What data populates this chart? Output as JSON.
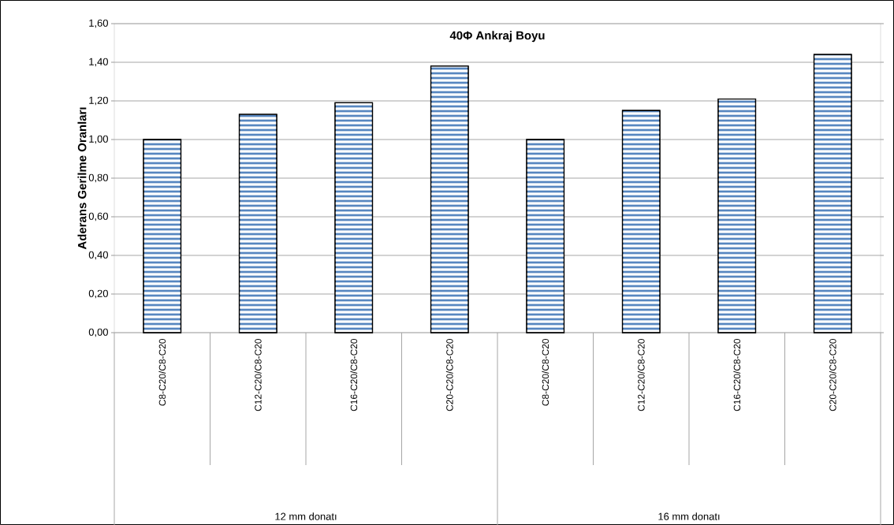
{
  "chart_data": {
    "type": "bar",
    "title": "40Φ Ankraj Boyu",
    "ylabel": "Aderans Gerilme Oranları",
    "categories": [
      "C8-C20/C8-C20",
      "C12-C20/C8-C20",
      "C16-C20/C8-C20",
      "C20-C20/C8-C20",
      "C8-C20/C8-C20",
      "C12-C20/C8-C20",
      "C16-C20/C8-C20",
      "C20-C20/C8-C20"
    ],
    "values": [
      1.0,
      1.13,
      1.19,
      1.38,
      1.0,
      1.15,
      1.21,
      1.44
    ],
    "color": "#4f81bd",
    "ylim": [
      0,
      1.6
    ],
    "yticks": [
      {
        "value": 0,
        "label": "0,00"
      },
      {
        "value": 0.2,
        "label": "0,20"
      },
      {
        "value": 0.4,
        "label": "0,40"
      },
      {
        "value": 0.6,
        "label": "0,60"
      },
      {
        "value": 0.8,
        "label": "0,80"
      },
      {
        "value": 1.0,
        "label": "1,00"
      },
      {
        "value": 1.2,
        "label": "1,20"
      },
      {
        "value": 1.4,
        "label": "1,40"
      },
      {
        "value": 1.6,
        "label": "1,60"
      }
    ],
    "grid": "y",
    "annotations": [
      "12 mm donatı",
      "16 mm donatı"
    ]
  }
}
